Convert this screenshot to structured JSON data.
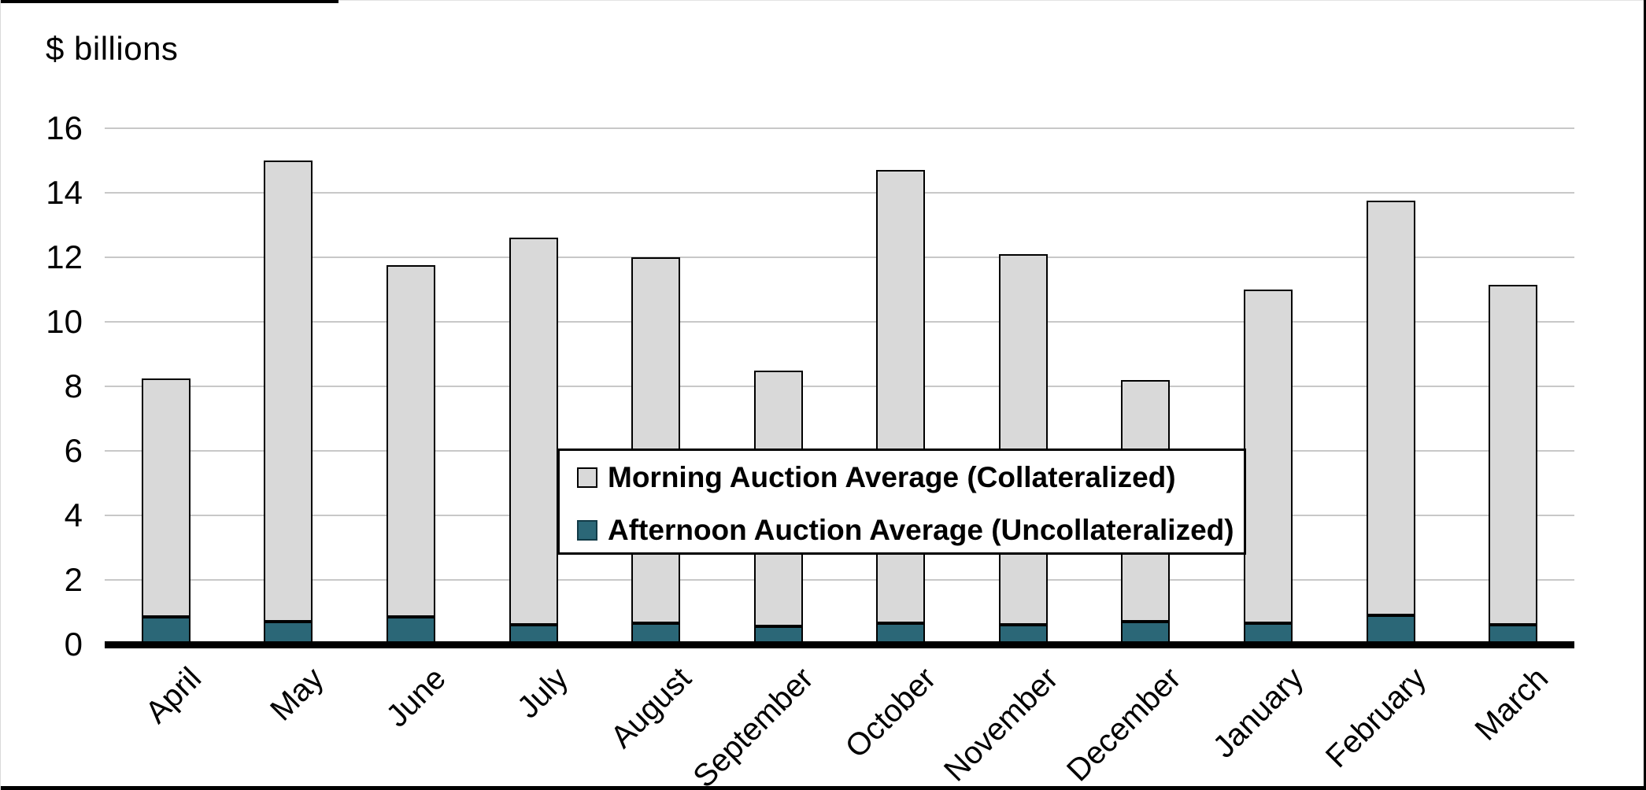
{
  "chart_data": {
    "type": "bar",
    "stacked": true,
    "ylabel": "$ billions",
    "categories": [
      "April",
      "May",
      "June",
      "July",
      "August",
      "September",
      "October",
      "November",
      "December",
      "January",
      "February",
      "March"
    ],
    "series": [
      {
        "name": "Morning Auction Average (Collateralized)",
        "color": "#d9d9d9",
        "values": [
          7.4,
          14.3,
          10.9,
          12.0,
          11.35,
          7.95,
          14.05,
          11.5,
          7.5,
          10.35,
          12.85,
          10.55
        ]
      },
      {
        "name": "Afternoon Auction Average (Uncollateralized)",
        "color": "#2b6777",
        "values": [
          0.85,
          0.7,
          0.85,
          0.6,
          0.65,
          0.55,
          0.65,
          0.6,
          0.7,
          0.65,
          0.9,
          0.6
        ]
      }
    ],
    "stack_totals": [
      8.25,
      15.0,
      11.75,
      12.6,
      12.0,
      8.5,
      14.7,
      12.1,
      8.2,
      11.0,
      13.75,
      11.15
    ],
    "stack_order_bottom_to_top": [
      "Afternoon Auction Average (Uncollateralized)",
      "Morning Auction Average (Collateralized)"
    ],
    "ylim": [
      0,
      16
    ],
    "yticks": [
      0,
      2,
      4,
      6,
      8,
      10,
      12,
      14,
      16
    ],
    "grid": "horizontal",
    "gridline_color": "#c8c8c8",
    "bar_border_color": "#000000",
    "axis_line_color": "#000000",
    "legend_position": "inside-center",
    "x_label_rotation_deg": -45
  }
}
